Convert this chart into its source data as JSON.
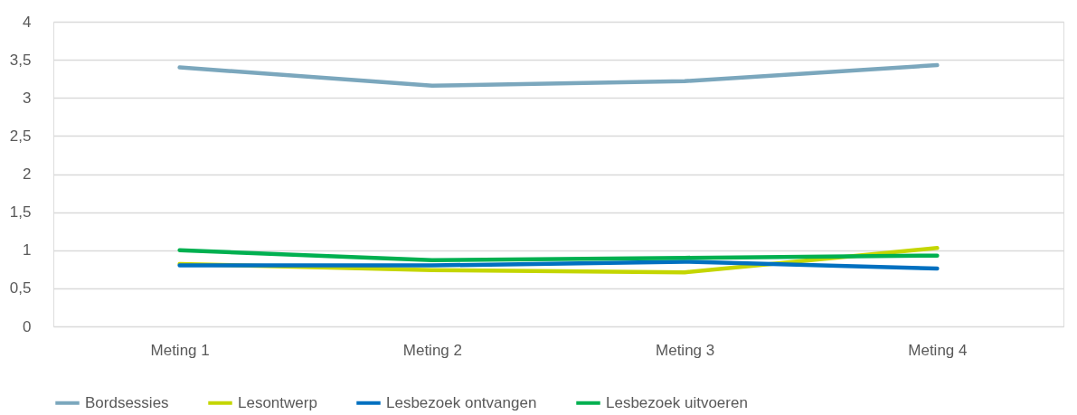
{
  "chart_data": {
    "type": "line",
    "categories": [
      "Meting 1",
      "Meting 2",
      "Meting 3",
      "Meting 4"
    ],
    "series": [
      {
        "name": "Bordsessies",
        "color": "#7ba7bd",
        "values": [
          3.4,
          3.16,
          3.22,
          3.43
        ]
      },
      {
        "name": "Lesontwerp",
        "color": "#c4d600",
        "values": [
          0.82,
          0.74,
          0.71,
          1.03
        ]
      },
      {
        "name": "Lesbezoek ontvangen",
        "color": "#0070c0",
        "values": [
          0.8,
          0.8,
          0.85,
          0.76
        ]
      },
      {
        "name": "Lesbezoek uitvoeren",
        "color": "#00b050",
        "values": [
          1.0,
          0.87,
          0.9,
          0.93
        ]
      }
    ],
    "ylim": [
      0,
      4
    ],
    "yticks": [
      0,
      {
        "value": 0.5,
        "label": "0,5"
      },
      1,
      {
        "value": 1.5,
        "label": "1,5"
      },
      2,
      {
        "value": 2.5,
        "label": "2,5"
      },
      3,
      {
        "value": 3.5,
        "label": "3,5"
      },
      4
    ],
    "grid": "y",
    "legend": "bottom",
    "marker": "none",
    "line_style": "solid"
  }
}
